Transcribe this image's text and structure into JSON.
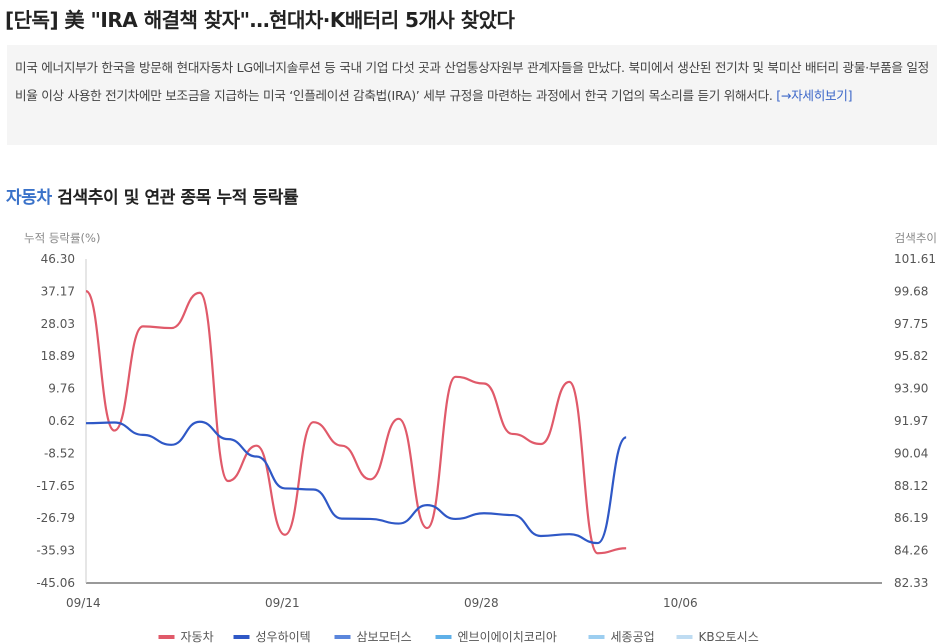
{
  "article": {
    "headline": "[단독] 美 \"IRA 해결책 찾자\"…현대차·K배터리 5개사 찾았다",
    "lead": "미국 에너지부가 한국을 방문해 현대자동차 LG에너지솔루션 등 국내 기업 다섯 곳과 산업통상자원부 관계자들을 만났다. 북미에서 생산된 전기차 및 북미산 배터리 광물·부품을 일정 비율 이상 사용한 전기차에만 보조금을 지급하는 미국 ‘인플레이션 감축법(IRA)’ 세부 규정을 마련하는 과정에서 한국 기업의 목소리를 듣기 위해서다.",
    "more_link": "[→자세히보기]"
  },
  "section": {
    "keyword": "자동차",
    "title_rest": " 검색추이 및 연관 종목 누적 등락률"
  },
  "chart_data": {
    "type": "line",
    "y_left_label": "누적 등락률(%)",
    "y_right_label": "검색추이",
    "y_left_ticks": [
      "46.30",
      "37.17",
      "28.03",
      "18.89",
      "9.76",
      "0.62",
      "-8.52",
      "-17.65",
      "-26.79",
      "-35.93",
      "-45.06"
    ],
    "y_right_ticks": [
      "101.61",
      "99.68",
      "97.75",
      "95.82",
      "93.90",
      "91.97",
      "90.04",
      "88.12",
      "86.19",
      "84.26",
      "82.33"
    ],
    "ylim": [
      -45.06,
      46.3
    ],
    "y_right_lim": [
      82.33,
      101.61
    ],
    "x_tick_labels": [
      {
        "label": "09/14",
        "x": 0
      },
      {
        "label": "09/21",
        "x": 7
      },
      {
        "label": "09/28",
        "x": 14
      },
      {
        "label": "10/06",
        "x": 21
      }
    ],
    "xlim": [
      0,
      28
    ],
    "series": [
      {
        "name": "자동차",
        "color": "#e05a6a",
        "axis": "right",
        "x": [
          0,
          1,
          2,
          3,
          4,
          5,
          6,
          7,
          8,
          9,
          10,
          11,
          12,
          13,
          14,
          15,
          16,
          17,
          18,
          19,
          20,
          21,
          22,
          23,
          24,
          25,
          26,
          27,
          28
        ],
        "values": [
          99.7,
          91.4,
          97.6,
          97.5,
          99.6,
          88.4,
          90.5,
          85.2,
          91.9,
          90.5,
          88.5,
          92.1,
          85.6,
          94.6,
          94.2,
          91.2,
          90.6,
          94.3,
          84.1,
          84.4,
          null,
          null,
          null,
          null,
          null,
          null,
          null,
          null,
          null
        ]
      },
      {
        "name": "성우하이텍",
        "color": "#2f58c6",
        "x": [
          0,
          1,
          2,
          3,
          4,
          5,
          6,
          7,
          8,
          9,
          10,
          11,
          12,
          13,
          14,
          15,
          16,
          17,
          18,
          19,
          20,
          21,
          22,
          23,
          24,
          25,
          26,
          27,
          28
        ],
        "values": [
          0.0,
          0.2,
          -3.3,
          -6.1,
          0.4,
          -4.5,
          -9.4,
          -18.4,
          -18.7,
          -26.9,
          -27.0,
          -28.3,
          -23.1,
          -27.0,
          -25.4,
          -25.9,
          -31.8,
          -31.3,
          -33.8,
          -4.0,
          null,
          null,
          null,
          null,
          null,
          null,
          null,
          null,
          null
        ]
      },
      {
        "name": "삼보모터스",
        "color": "#5b86dc",
        "axis": "right",
        "x": [
          0,
          1,
          2,
          3,
          4,
          5,
          6,
          7,
          8,
          9,
          10,
          11,
          12,
          13,
          14,
          15,
          16,
          17,
          18,
          19,
          20,
          21,
          22,
          23,
          24,
          25,
          26,
          27,
          28
        ],
        "values": [
          null,
          null,
          null,
          null,
          null,
          null,
          null,
          null,
          null,
          null,
          null,
          null,
          null,
          null,
          null,
          null,
          null,
          null,
          null,
          null,
          null,
          null,
          null,
          null,
          null,
          null,
          null,
          null,
          null
        ]
      },
      {
        "name": "엔브이에이치코리아",
        "color": "#5fb0e8",
        "x": [
          0,
          1,
          2,
          3,
          4,
          5,
          6,
          7,
          8,
          9,
          10,
          11,
          12,
          13,
          14,
          15,
          16,
          17,
          18,
          19,
          20,
          21,
          22,
          23,
          24,
          25,
          26,
          27,
          28
        ],
        "values": [
          null,
          null,
          null,
          null,
          null,
          null,
          null,
          null,
          null,
          null,
          null,
          null,
          null,
          null,
          null,
          null,
          null,
          null,
          null,
          null,
          null,
          null,
          null,
          null,
          null,
          null,
          null,
          null,
          null
        ]
      },
      {
        "name": "세종공업",
        "color": "#9ccef0",
        "x": [],
        "values": []
      },
      {
        "name": "KB오토시스",
        "color": "#bfdcf2",
        "x": [],
        "values": []
      }
    ],
    "grid": false,
    "legend": "bottom"
  }
}
